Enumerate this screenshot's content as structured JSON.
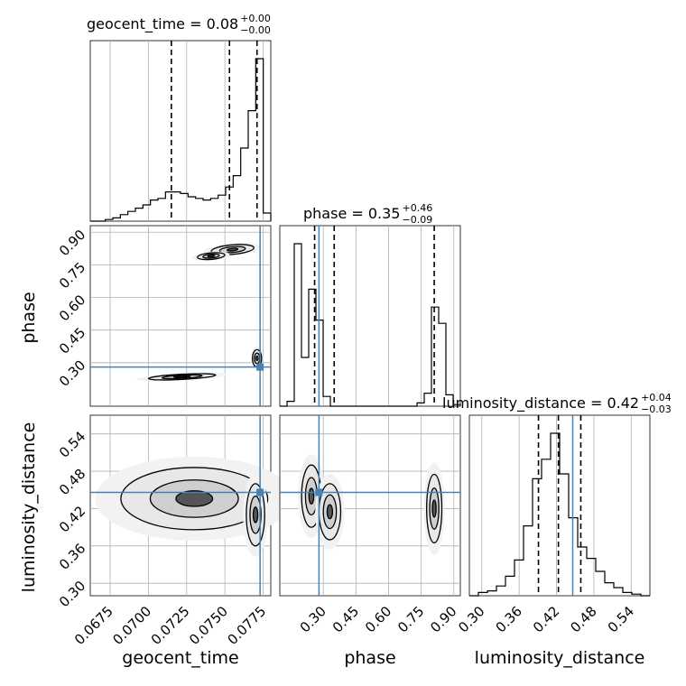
{
  "chart_data": {
    "type": "corner",
    "parameters": [
      "geocent_time",
      "phase",
      "luminosity_distance"
    ],
    "colors": {
      "truth": "#4682b4",
      "hist": "#000000",
      "grid": "#b0b0b0",
      "quantile": "#000000",
      "scatter": "#000000"
    },
    "grid": true,
    "titles": [
      {
        "param": "geocent_time",
        "text": "geocent_time = 0.08",
        "upper": "+0.00",
        "lower": "−0.00"
      },
      {
        "param": "phase",
        "text": "phase = 0.35",
        "upper": "+0.46",
        "lower": "−0.09"
      },
      {
        "param": "luminosity_distance",
        "text": "luminosity_distance = 0.42",
        "upper": "+0.04",
        "lower": "−0.03"
      }
    ],
    "axes": {
      "geocent_time": {
        "range": [
          0.0662,
          0.078
        ],
        "ticks": [
          0.0675,
          0.07,
          0.0725,
          0.075,
          0.0775
        ],
        "tick_labels": [
          "0.0675",
          "0.0700",
          "0.0725",
          "0.0750",
          "0.0775"
        ]
      },
      "phase": {
        "range": [
          0.1,
          0.93
        ],
        "ticks": [
          0.3,
          0.45,
          0.6,
          0.75,
          0.9
        ],
        "tick_labels": [
          "0.30",
          "0.45",
          "0.60",
          "0.75",
          "0.90"
        ]
      },
      "luminosity_distance": {
        "range": [
          0.28,
          0.57
        ],
        "ticks": [
          0.3,
          0.36,
          0.42,
          0.48,
          0.54
        ],
        "tick_labels": [
          "0.30",
          "0.36",
          "0.42",
          "0.48",
          "0.54"
        ]
      }
    },
    "truths": {
      "geocent_time": 0.0773,
      "phase": 0.28,
      "luminosity_distance": 0.446
    },
    "quantiles": {
      "geocent_time": [
        0.0715,
        0.0753,
        0.0771
      ],
      "phase": [
        0.26,
        0.35,
        0.81
      ],
      "luminosity_distance": [
        0.391,
        0.423,
        0.459
      ]
    },
    "histograms": {
      "geocent_time": {
        "edges": [
          0.0662,
          0.078
        ],
        "counts": [
          0,
          0,
          1,
          2,
          4,
          6,
          8,
          10,
          13,
          14,
          18,
          18,
          17,
          15,
          14,
          13,
          14,
          16,
          21,
          28,
          45,
          68,
          100,
          5
        ]
      },
      "phase": {
        "edges": [
          0.1,
          0.93
        ],
        "counts": [
          0,
          3,
          100,
          30,
          72,
          53,
          6,
          0,
          0,
          0,
          0,
          0,
          0,
          0,
          0,
          0,
          0,
          0,
          0,
          2,
          8,
          61,
          51,
          7,
          1
        ]
      },
      "luminosity_distance": {
        "edges": [
          0.28,
          0.57
        ],
        "counts": [
          0,
          2,
          3,
          6,
          12,
          22,
          43,
          72,
          84,
          100,
          75,
          48,
          30,
          23,
          15,
          8,
          5,
          2,
          1,
          0
        ]
      }
    },
    "blobs": {
      "geocent_time|phase": [
        {
          "x": 0.0722,
          "y": 0.235,
          "rx": 0.0022,
          "ry": 0.012,
          "rot": -3
        },
        {
          "x": 0.0755,
          "y": 0.82,
          "rx": 0.0014,
          "ry": 0.022,
          "rot": -5
        },
        {
          "x": 0.0741,
          "y": 0.79,
          "rx": 0.0009,
          "ry": 0.015,
          "rot": -5
        },
        {
          "x": 0.0771,
          "y": 0.32,
          "rx": 0.0003,
          "ry": 0.04,
          "rot": 0
        }
      ],
      "geocent_time|luminosity_distance": [
        {
          "x": 0.073,
          "y": 0.436,
          "rx": 0.0048,
          "ry": 0.05,
          "rot": 0
        },
        {
          "x": 0.077,
          "y": 0.41,
          "rx": 0.0006,
          "ry": 0.05,
          "rot": 0
        }
      ],
      "phase|luminosity_distance": [
        {
          "x": 0.245,
          "y": 0.44,
          "rx": 0.045,
          "ry": 0.05,
          "rot": 0
        },
        {
          "x": 0.33,
          "y": 0.415,
          "rx": 0.05,
          "ry": 0.045,
          "rot": 0
        },
        {
          "x": 0.81,
          "y": 0.42,
          "rx": 0.035,
          "ry": 0.055,
          "rot": 0
        }
      ]
    }
  }
}
